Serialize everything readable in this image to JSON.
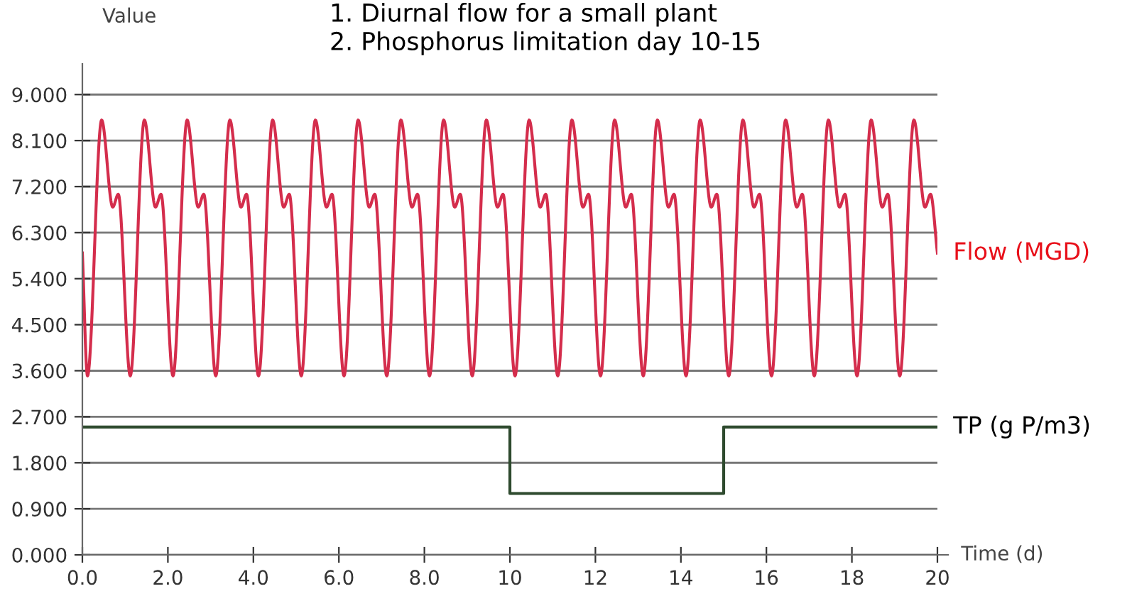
{
  "chart_data": {
    "type": "line",
    "title": "1. Diurnal flow for a small plant\n2. Phosphorus limitation day 10-15",
    "xlabel": "Time (d)",
    "ylabel": "Value",
    "xlim": [
      0,
      20
    ],
    "ylim": [
      0,
      9.6
    ],
    "xticks": [
      {
        "value": 0,
        "label": "0.0"
      },
      {
        "value": 2,
        "label": "2.0"
      },
      {
        "value": 4,
        "label": "4.0"
      },
      {
        "value": 6,
        "label": "6.0"
      },
      {
        "value": 8,
        "label": "8.0"
      },
      10,
      12,
      14,
      16,
      18,
      20
    ],
    "yticks": [
      {
        "value": 0,
        "label": "0.000"
      },
      {
        "value": 0.9,
        "label": "0.900"
      },
      {
        "value": 1.8,
        "label": "1.800"
      },
      {
        "value": 2.7,
        "label": "2.700"
      },
      {
        "value": 3.6,
        "label": "3.600"
      },
      {
        "value": 4.5,
        "label": "4.500"
      },
      {
        "value": 5.4,
        "label": "5.400"
      },
      {
        "value": 6.3,
        "label": "6.300"
      },
      {
        "value": 7.2,
        "label": "7.200"
      },
      {
        "value": 8.1,
        "label": "8.100"
      },
      {
        "value": 9,
        "label": "9.000"
      }
    ],
    "grid": "y",
    "legend": false,
    "series": [
      {
        "name": "Flow (MGD)",
        "color": "#d42d4c",
        "x": [
          0,
          0.12,
          0.45,
          0.71,
          0.84,
          1.12,
          1.45,
          1.71,
          1.84,
          2.12,
          2.45,
          2.71,
          2.84,
          3.12,
          3.45,
          3.71,
          3.84,
          4.12,
          4.45,
          4.71,
          4.84,
          5.12,
          5.45,
          5.71,
          5.84,
          6.12,
          6.45,
          6.71,
          6.84,
          7.12,
          7.45,
          7.71,
          7.84,
          8.12,
          8.45,
          8.71,
          8.84,
          9.12,
          9.45,
          9.71,
          9.84,
          10.12,
          10.45,
          10.71,
          10.84,
          11.12,
          11.45,
          11.71,
          11.84,
          12.12,
          12.45,
          12.71,
          12.84,
          13.12,
          13.45,
          13.71,
          13.84,
          14.12,
          14.45,
          14.71,
          14.84,
          15.12,
          15.45,
          15.71,
          15.84,
          16.12,
          16.45,
          16.71,
          16.84,
          17.12,
          17.45,
          17.71,
          17.84,
          18.12,
          18.45,
          18.71,
          18.84,
          19.12,
          19.45,
          19.71,
          19.84,
          20
        ],
        "values": [
          5.9,
          3.5,
          8.5,
          6.8,
          7.05,
          3.5,
          8.5,
          6.8,
          7.05,
          3.5,
          8.5,
          6.8,
          7.05,
          3.5,
          8.5,
          6.8,
          7.05,
          3.5,
          8.5,
          6.8,
          7.05,
          3.5,
          8.5,
          6.8,
          7.05,
          3.5,
          8.5,
          6.8,
          7.05,
          3.5,
          8.5,
          6.8,
          7.05,
          3.5,
          8.5,
          6.8,
          7.05,
          3.5,
          8.5,
          6.8,
          7.05,
          3.5,
          8.5,
          6.8,
          7.05,
          3.5,
          8.5,
          6.8,
          7.05,
          3.5,
          8.5,
          6.8,
          7.05,
          3.5,
          8.5,
          6.8,
          7.05,
          3.5,
          8.5,
          6.8,
          7.05,
          3.5,
          8.5,
          6.8,
          7.05,
          3.5,
          8.5,
          6.8,
          7.05,
          3.5,
          8.5,
          6.8,
          7.05,
          3.5,
          8.5,
          6.8,
          7.05,
          3.5,
          8.5,
          6.8,
          7.05,
          5.9
        ]
      },
      {
        "name": "TP (g P/m3)",
        "color": "#2e4a2e",
        "type": "step",
        "x": [
          0,
          10,
          15,
          20
        ],
        "values": [
          2.5,
          1.2,
          2.5,
          2.5
        ]
      }
    ]
  }
}
